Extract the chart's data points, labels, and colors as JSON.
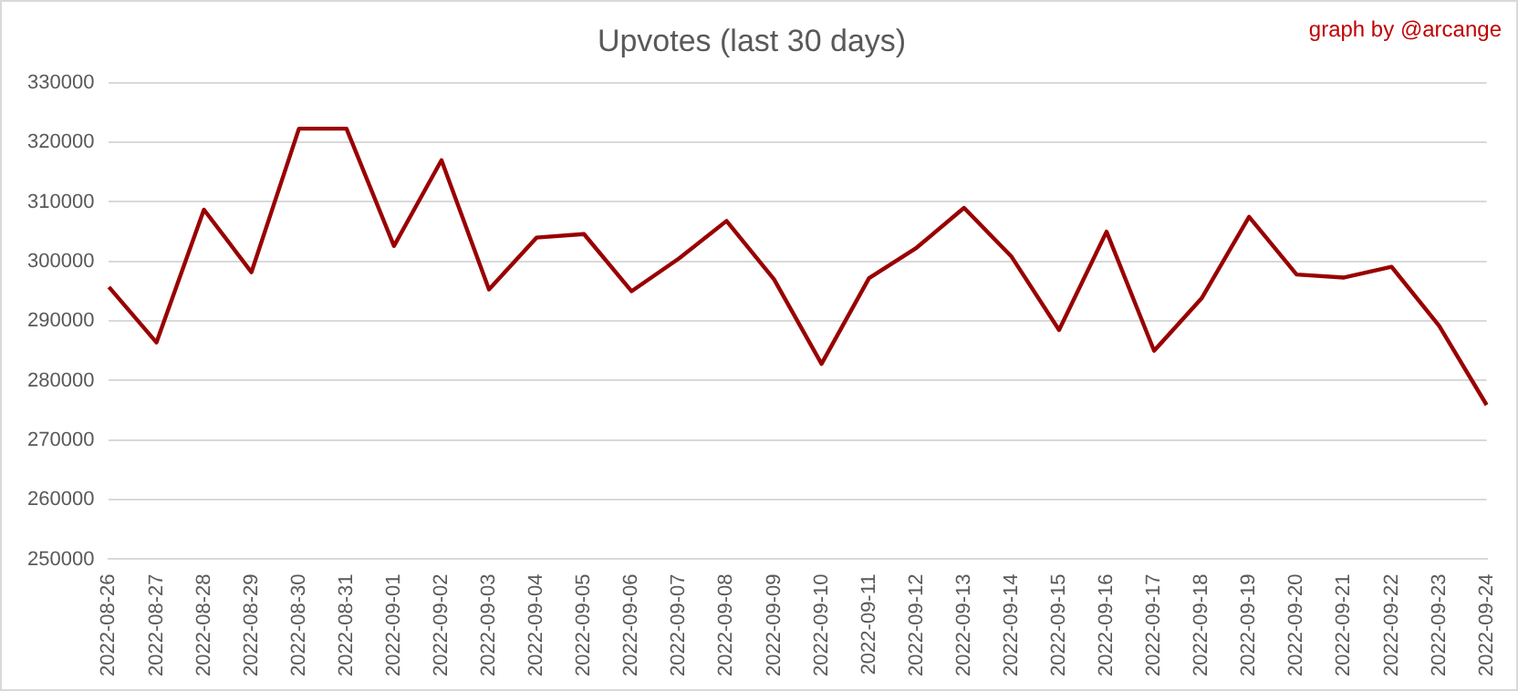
{
  "chart_data": {
    "type": "line",
    "title": "Upvotes (last 30 days)",
    "annotations": [
      "graph by @arcange"
    ],
    "categories": [
      "2022-08-26",
      "2022-08-27",
      "2022-08-28",
      "2022-08-29",
      "2022-08-30",
      "2022-08-31",
      "2022-09-01",
      "2022-09-02",
      "2022-09-03",
      "2022-09-04",
      "2022-09-05",
      "2022-09-06",
      "2022-09-07",
      "2022-09-08",
      "2022-09-09",
      "2022-09-10",
      "2022-09-11",
      "2022-09-12",
      "2022-09-13",
      "2022-09-14",
      "2022-09-15",
      "2022-09-16",
      "2022-09-17",
      "2022-09-18",
      "2022-09-19",
      "2022-09-20",
      "2022-09-21",
      "2022-09-22",
      "2022-09-23",
      "2022-09-24"
    ],
    "series": [
      {
        "color": "#990000",
        "values": [
          295700,
          286400,
          308700,
          298200,
          322300,
          322300,
          302600,
          317000,
          295300,
          304000,
          304600,
          295000,
          300500,
          306800,
          297000,
          282800,
          297200,
          302300,
          309000,
          300800,
          288500,
          305000,
          285000,
          293800,
          307500,
          297800,
          297300,
          299100,
          289200,
          275900
        ]
      }
    ],
    "ylim": [
      250000,
      330000
    ],
    "yticks": [
      250000,
      260000,
      270000,
      280000,
      290000,
      300000,
      310000,
      320000,
      330000
    ],
    "grid": "y",
    "legend": false,
    "marker": "none",
    "line_style": "solid"
  }
}
